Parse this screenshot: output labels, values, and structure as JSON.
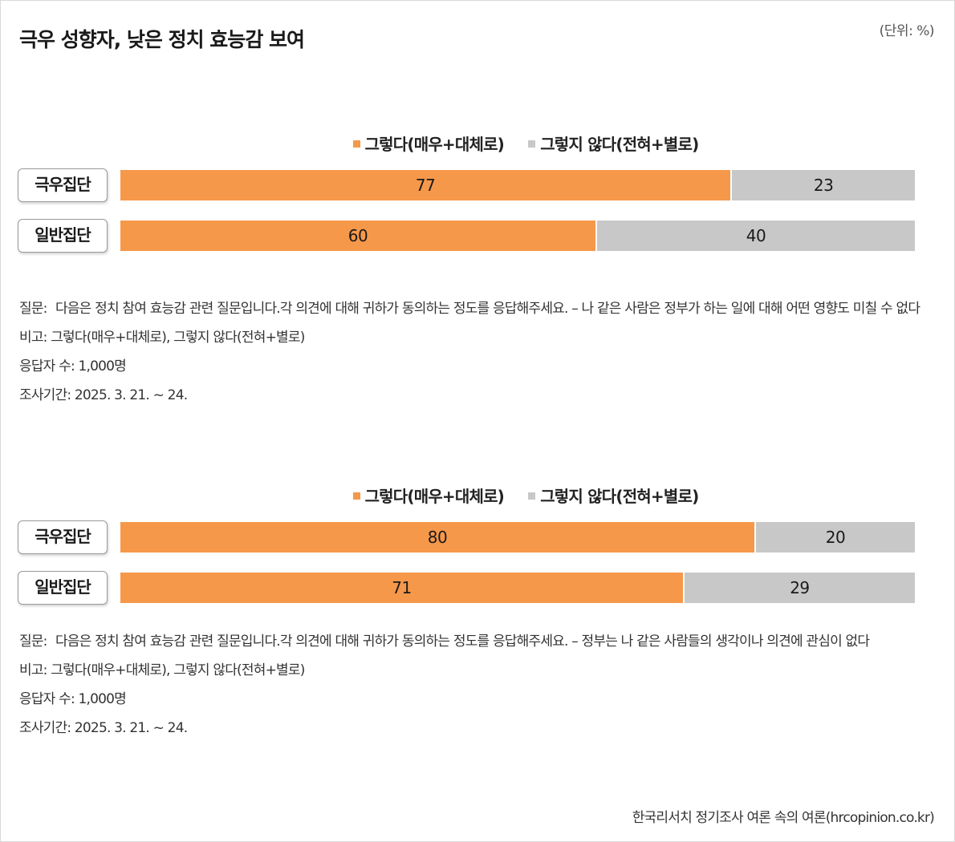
{
  "title": "극우 성향자, 낮은 정치 효능감 보여",
  "unit": "(단위: %)",
  "colors": {
    "agree": "#f6984a",
    "disagree": "#c8c8c8"
  },
  "legend": {
    "agree": "그렇다(매우+대체로)",
    "disagree": "그렇지 않다(전혀+별로)"
  },
  "chart_data": [
    {
      "type": "bar",
      "orientation": "horizontal",
      "stacked": true,
      "categories": [
        "극우집단",
        "일반집단"
      ],
      "series": [
        {
          "name": "그렇다(매우+대체로)",
          "values": [
            77,
            60
          ]
        },
        {
          "name": "그렇지 않다(전혀+별로)",
          "values": [
            23,
            40
          ]
        }
      ],
      "xlim": [
        0,
        100
      ],
      "legend_position": "top-center",
      "grid": false
    },
    {
      "type": "bar",
      "orientation": "horizontal",
      "stacked": true,
      "categories": [
        "극우집단",
        "일반집단"
      ],
      "series": [
        {
          "name": "그렇다(매우+대체로)",
          "values": [
            80,
            71
          ]
        },
        {
          "name": "그렇지 않다(전혀+별로)",
          "values": [
            20,
            29
          ]
        }
      ],
      "xlim": [
        0,
        100
      ],
      "legend_position": "top-center",
      "grid": false
    }
  ],
  "notes": [
    {
      "question_label": "질문:",
      "question": "다음은 정치 참여 효능감 관련 질문입니다.각 의견에 대해 귀하가 동의하는 정도를 응답해주세요. – 나 같은 사람은 정부가 하는 일에 대해 어떤 영향도 미칠 수 없다",
      "remark": "비고: 그렇다(매우+대체로), 그렇지 않다(전혀+별로)",
      "respondents": "응답자 수: 1,000명",
      "period": "조사기간: 2025. 3. 21. ~ 24."
    },
    {
      "question_label": "질문:",
      "question": "다음은 정치 참여 효능감 관련 질문입니다.각 의견에 대해 귀하가 동의하는 정도를 응답해주세요. – 정부는 나 같은 사람들의 생각이나 의견에 관심이 없다",
      "remark": "비고: 그렇다(매우+대체로), 그렇지 않다(전혀+별로)",
      "respondents": "응답자 수: 1,000명",
      "period": "조사기간: 2025. 3. 21. ~ 24."
    }
  ],
  "source": "한국리서치 정기조사 여론 속의 여론(hrcopinion.co.kr)"
}
